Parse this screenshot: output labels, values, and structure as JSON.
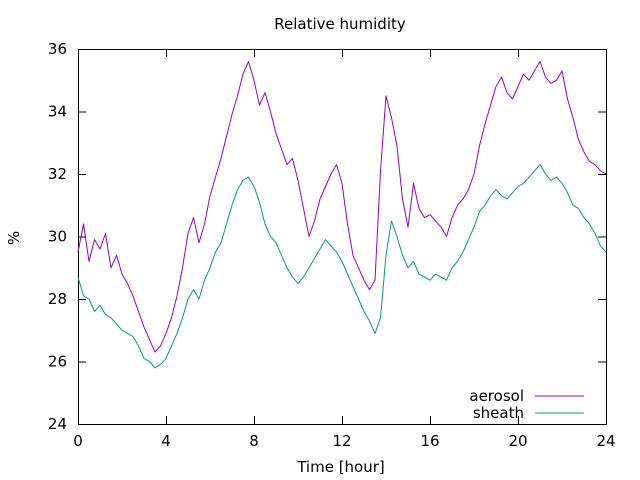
{
  "chart_data": {
    "type": "line",
    "title": "Relative humidity",
    "xlabel": "Time [hour]",
    "ylabel": "%",
    "xlim": [
      0,
      24
    ],
    "ylim": [
      24,
      36
    ],
    "xticks": [
      0,
      4,
      8,
      12,
      16,
      20,
      24
    ],
    "yticks": [
      24,
      26,
      28,
      30,
      32,
      34,
      36
    ],
    "grid": false,
    "legend_position": "bottom-right",
    "colors": {
      "aerosol": "#9400d3",
      "sheath": "#009e73"
    },
    "series": [
      {
        "name": "aerosol",
        "x": [
          0,
          0.25,
          0.5,
          0.75,
          1,
          1.25,
          1.5,
          1.75,
          2,
          2.25,
          2.5,
          2.75,
          3,
          3.25,
          3.5,
          3.75,
          4,
          4.25,
          4.5,
          4.75,
          5,
          5.25,
          5.5,
          5.75,
          6,
          6.25,
          6.5,
          6.75,
          7,
          7.25,
          7.5,
          7.75,
          8,
          8.25,
          8.5,
          8.75,
          9,
          9.25,
          9.5,
          9.75,
          10,
          10.25,
          10.5,
          10.75,
          11,
          11.25,
          11.5,
          11.75,
          12,
          12.25,
          12.5,
          12.75,
          13,
          13.25,
          13.5,
          13.75,
          14,
          14.25,
          14.5,
          14.75,
          15,
          15.25,
          15.5,
          15.75,
          16,
          16.25,
          16.5,
          16.75,
          17,
          17.25,
          17.5,
          17.75,
          18,
          18.25,
          18.5,
          18.75,
          19,
          19.25,
          19.5,
          19.75,
          20,
          20.25,
          20.5,
          20.75,
          21,
          21.25,
          21.5,
          21.75,
          22,
          22.25,
          22.5,
          22.75,
          23,
          23.25,
          23.5,
          23.75,
          24
        ],
        "values": [
          29.5,
          30.4,
          29.2,
          29.9,
          29.6,
          30.1,
          29.0,
          29.4,
          28.8,
          28.5,
          28.1,
          27.6,
          27.1,
          26.7,
          26.3,
          26.5,
          26.9,
          27.4,
          28.1,
          29.0,
          30.1,
          30.6,
          29.8,
          30.4,
          31.3,
          31.9,
          32.5,
          33.2,
          33.9,
          34.5,
          35.2,
          35.6,
          35.0,
          34.2,
          34.6,
          34.0,
          33.3,
          32.8,
          32.3,
          32.5,
          31.8,
          30.9,
          30.0,
          30.5,
          31.2,
          31.6,
          32.0,
          32.3,
          31.7,
          30.4,
          29.4,
          29.0,
          28.6,
          28.3,
          28.6,
          32.1,
          34.5,
          33.8,
          32.9,
          31.2,
          30.3,
          31.7,
          30.9,
          30.6,
          30.7,
          30.5,
          30.3,
          30.0,
          30.6,
          31.0,
          31.2,
          31.5,
          32.0,
          32.9,
          33.6,
          34.2,
          34.8,
          35.1,
          34.6,
          34.4,
          34.8,
          35.2,
          35.0,
          35.3,
          35.6,
          35.1,
          34.9,
          35.0,
          35.3,
          34.4,
          33.8,
          33.1,
          32.7,
          32.4,
          32.3,
          32.1,
          32.0
        ]
      },
      {
        "name": "sheath",
        "x": [
          0,
          0.25,
          0.5,
          0.75,
          1,
          1.25,
          1.5,
          1.75,
          2,
          2.25,
          2.5,
          2.75,
          3,
          3.25,
          3.5,
          3.75,
          4,
          4.25,
          4.5,
          4.75,
          5,
          5.25,
          5.5,
          5.75,
          6,
          6.25,
          6.5,
          6.75,
          7,
          7.25,
          7.5,
          7.75,
          8,
          8.25,
          8.5,
          8.75,
          9,
          9.25,
          9.5,
          9.75,
          10,
          10.25,
          10.5,
          10.75,
          11,
          11.25,
          11.5,
          11.75,
          12,
          12.25,
          12.5,
          12.75,
          13,
          13.25,
          13.5,
          13.75,
          14,
          14.25,
          14.5,
          14.75,
          15,
          15.25,
          15.5,
          15.75,
          16,
          16.25,
          16.5,
          16.75,
          17,
          17.25,
          17.5,
          17.75,
          18,
          18.25,
          18.5,
          18.75,
          19,
          19.25,
          19.5,
          19.75,
          20,
          20.25,
          20.5,
          20.75,
          21,
          21.25,
          21.5,
          21.75,
          22,
          22.25,
          22.5,
          22.75,
          23,
          23.25,
          23.5,
          23.75,
          24
        ],
        "values": [
          28.7,
          28.1,
          28.0,
          27.6,
          27.8,
          27.5,
          27.4,
          27.2,
          27.0,
          26.9,
          26.8,
          26.5,
          26.1,
          26.0,
          25.8,
          25.9,
          26.1,
          26.5,
          26.9,
          27.4,
          28.0,
          28.3,
          28.0,
          28.6,
          29.0,
          29.5,
          29.8,
          30.4,
          31.0,
          31.5,
          31.8,
          31.9,
          31.6,
          31.1,
          30.4,
          30.0,
          29.8,
          29.4,
          29.0,
          28.7,
          28.5,
          28.7,
          29.0,
          29.3,
          29.6,
          29.9,
          29.7,
          29.5,
          29.2,
          28.8,
          28.4,
          28.0,
          27.6,
          27.3,
          26.9,
          27.4,
          29.4,
          30.5,
          30.0,
          29.4,
          29.0,
          29.2,
          28.8,
          28.7,
          28.6,
          28.8,
          28.7,
          28.6,
          29.0,
          29.2,
          29.5,
          29.9,
          30.3,
          30.8,
          31.0,
          31.3,
          31.5,
          31.3,
          31.2,
          31.4,
          31.6,
          31.7,
          31.9,
          32.1,
          32.3,
          32.0,
          31.8,
          31.9,
          31.7,
          31.4,
          31.0,
          30.9,
          30.6,
          30.4,
          30.1,
          29.7,
          29.5
        ]
      }
    ]
  }
}
